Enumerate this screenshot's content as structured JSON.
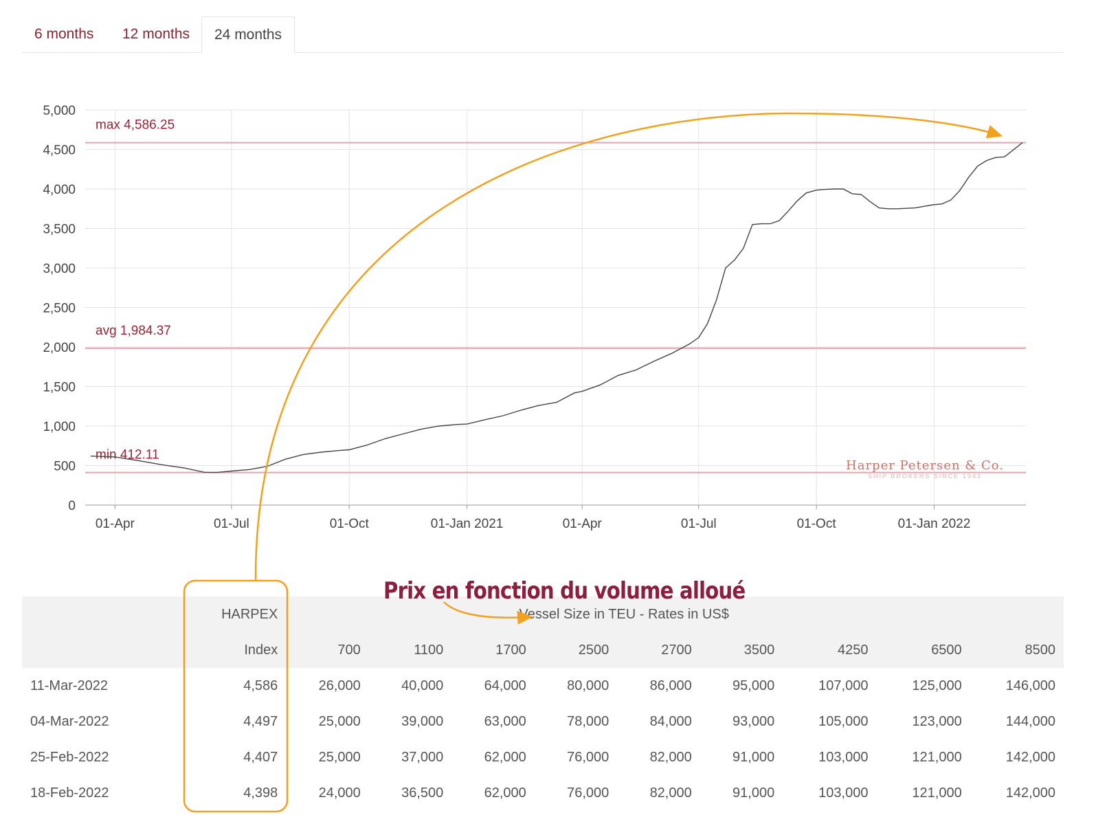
{
  "tabs": [
    {
      "label": "6 months",
      "active": false
    },
    {
      "label": "12 months",
      "active": false
    },
    {
      "label": "24 months",
      "active": true
    }
  ],
  "chart_data": {
    "type": "line",
    "title": "",
    "xlabel": "",
    "ylabel": "",
    "ylim": [
      0,
      5000
    ],
    "y_ticks": [
      "0",
      "500",
      "1,000",
      "1,500",
      "2,000",
      "2,500",
      "3,000",
      "3,500",
      "4,000",
      "4,500",
      "5,000"
    ],
    "y_tick_values": [
      0,
      500,
      1000,
      1500,
      2000,
      2500,
      3000,
      3500,
      4000,
      4500,
      5000
    ],
    "xlim": [
      "2020-03-13",
      "2022-03-11"
    ],
    "x_ticks": [
      {
        "date": "2020-04-01",
        "label": "01-Apr"
      },
      {
        "date": "2020-07-01",
        "label": "01-Jul"
      },
      {
        "date": "2020-10-01",
        "label": "01-Oct"
      },
      {
        "date": "2021-01-01",
        "label": "01-Jan 2021"
      },
      {
        "date": "2021-04-01",
        "label": "01-Apr"
      },
      {
        "date": "2021-07-01",
        "label": "01-Jul"
      },
      {
        "date": "2021-10-01",
        "label": "01-Oct"
      },
      {
        "date": "2022-01-01",
        "label": "01-Jan 2022"
      }
    ],
    "reference_lines": [
      {
        "label": "max 4,586.25",
        "value": 4586.25
      },
      {
        "label": "avg 1,984.37",
        "value": 1984.37
      },
      {
        "label": "min 412.11",
        "value": 412.11
      }
    ],
    "grid": true,
    "series": [
      {
        "color": "#444444",
        "points": [
          [
            "2020-03-13",
            620
          ],
          [
            "2020-04-01",
            610
          ],
          [
            "2020-04-20",
            560
          ],
          [
            "2020-05-08",
            510
          ],
          [
            "2020-05-25",
            470
          ],
          [
            "2020-06-10",
            415
          ],
          [
            "2020-06-19",
            412
          ],
          [
            "2020-07-01",
            430
          ],
          [
            "2020-07-15",
            450
          ],
          [
            "2020-07-29",
            490
          ],
          [
            "2020-08-12",
            580
          ],
          [
            "2020-08-26",
            640
          ],
          [
            "2020-09-09",
            670
          ],
          [
            "2020-09-23",
            690
          ],
          [
            "2020-10-01",
            700
          ],
          [
            "2020-10-15",
            760
          ],
          [
            "2020-10-29",
            840
          ],
          [
            "2020-11-12",
            900
          ],
          [
            "2020-11-26",
            960
          ],
          [
            "2020-12-10",
            1000
          ],
          [
            "2020-12-24",
            1020
          ],
          [
            "2021-01-01",
            1025
          ],
          [
            "2021-01-15",
            1080
          ],
          [
            "2021-01-29",
            1130
          ],
          [
            "2021-02-12",
            1200
          ],
          [
            "2021-02-26",
            1260
          ],
          [
            "2021-03-12",
            1300
          ],
          [
            "2021-03-26",
            1420
          ],
          [
            "2021-04-01",
            1440
          ],
          [
            "2021-04-15",
            1520
          ],
          [
            "2021-04-29",
            1640
          ],
          [
            "2021-05-13",
            1710
          ],
          [
            "2021-05-27",
            1820
          ],
          [
            "2021-06-10",
            1920
          ],
          [
            "2021-06-24",
            2040
          ],
          [
            "2021-07-01",
            2120
          ],
          [
            "2021-07-08",
            2300
          ],
          [
            "2021-07-15",
            2600
          ],
          [
            "2021-07-22",
            3000
          ],
          [
            "2021-07-29",
            3100
          ],
          [
            "2021-08-05",
            3250
          ],
          [
            "2021-08-12",
            3550
          ],
          [
            "2021-08-19",
            3560
          ],
          [
            "2021-08-26",
            3560
          ],
          [
            "2021-09-02",
            3600
          ],
          [
            "2021-09-09",
            3720
          ],
          [
            "2021-09-16",
            3850
          ],
          [
            "2021-09-23",
            3950
          ],
          [
            "2021-10-01",
            3985
          ],
          [
            "2021-10-08",
            3995
          ],
          [
            "2021-10-15",
            4000
          ],
          [
            "2021-10-22",
            4000
          ],
          [
            "2021-10-29",
            3940
          ],
          [
            "2021-11-05",
            3930
          ],
          [
            "2021-11-12",
            3840
          ],
          [
            "2021-11-19",
            3760
          ],
          [
            "2021-11-26",
            3750
          ],
          [
            "2021-12-03",
            3750
          ],
          [
            "2021-12-10",
            3755
          ],
          [
            "2021-12-17",
            3760
          ],
          [
            "2021-12-24",
            3780
          ],
          [
            "2021-12-31",
            3800
          ],
          [
            "2022-01-07",
            3810
          ],
          [
            "2022-01-14",
            3860
          ],
          [
            "2022-01-21",
            3980
          ],
          [
            "2022-01-28",
            4150
          ],
          [
            "2022-02-04",
            4290
          ],
          [
            "2022-02-11",
            4360
          ],
          [
            "2022-02-18",
            4398
          ],
          [
            "2022-02-25",
            4407
          ],
          [
            "2022-03-04",
            4497
          ],
          [
            "2022-03-11",
            4586
          ]
        ]
      }
    ]
  },
  "watermark": {
    "name": "Harper Petersen & Co.",
    "tagline": "SHIP BROKERS SINCE 1943"
  },
  "annotation": {
    "text": "Prix en fonction du volume alloué"
  },
  "table": {
    "group_header_left": "HARPEX",
    "group_header_right": "Vessel Size in TEU - Rates in US$",
    "index_label": "Index",
    "sizes": [
      "700",
      "1100",
      "1700",
      "2500",
      "2700",
      "3500",
      "4250",
      "6500",
      "8500"
    ],
    "rows": [
      {
        "date": "11-Mar-2022",
        "index": "4,586",
        "rates": [
          "26,000",
          "40,000",
          "64,000",
          "80,000",
          "86,000",
          "95,000",
          "107,000",
          "125,000",
          "146,000"
        ]
      },
      {
        "date": "04-Mar-2022",
        "index": "4,497",
        "rates": [
          "25,000",
          "39,000",
          "63,000",
          "78,000",
          "84,000",
          "93,000",
          "105,000",
          "123,000",
          "144,000"
        ]
      },
      {
        "date": "25-Feb-2022",
        "index": "4,407",
        "rates": [
          "25,000",
          "37,000",
          "62,000",
          "76,000",
          "82,000",
          "91,000",
          "103,000",
          "121,000",
          "142,000"
        ]
      },
      {
        "date": "18-Feb-2022",
        "index": "4,398",
        "rates": [
          "24,000",
          "36,500",
          "62,000",
          "76,000",
          "82,000",
          "91,000",
          "103,000",
          "121,000",
          "142,000"
        ]
      }
    ]
  },
  "colors": {
    "tab_text": "#8c2330",
    "reference_line": "#e8a3ad",
    "reference_label": "#9b2335",
    "annotation_orange": "#f5a01c",
    "annotation_title": "#8c1f3e",
    "watermark": "#c9736b"
  }
}
